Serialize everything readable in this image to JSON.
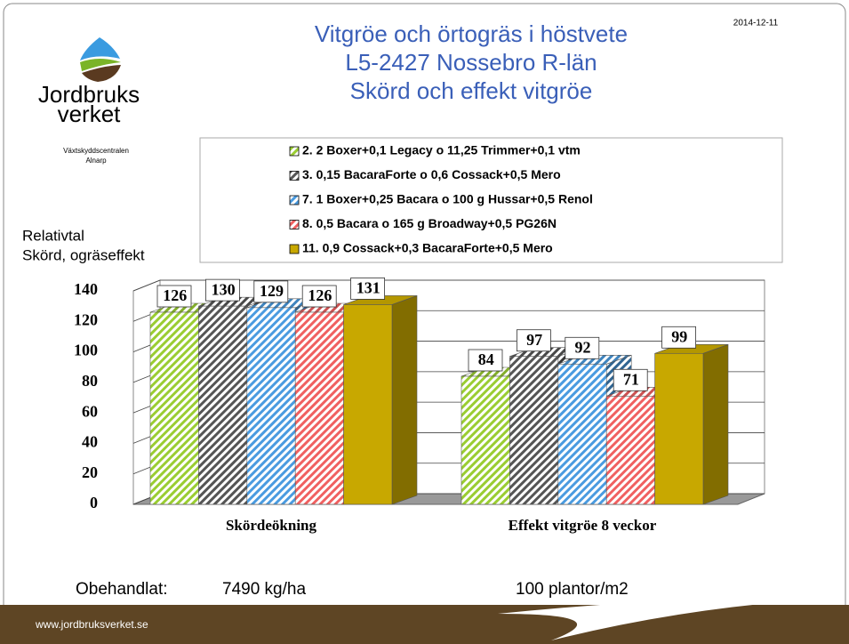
{
  "chart_data": {
    "type": "bar3d",
    "title": [
      "Vitgröe och örtogräs i höstvete",
      "L5-2427 Nossebro R-län",
      "Skörd och effekt vitgröe"
    ],
    "ylabel": [
      "Relativtal",
      "Skörd, ogräseffekt"
    ],
    "categories": [
      "Skördeökning",
      "Effekt vitgröe 8 veckor"
    ],
    "series": [
      {
        "name": "2. 2 Boxer+0,1 Legacy o 11,25 Trimmer+0,1 vtm",
        "color": "#9acd32",
        "hatch": true,
        "values": [
          126,
          84
        ]
      },
      {
        "name": "3. 0,15 BacaraForte o 0,6 Cossack+0,5 Mero",
        "color": "#555555",
        "hatch": true,
        "values": [
          130,
          97
        ]
      },
      {
        "name": "7. 1 Boxer+0,25 Bacara o 100 g Hussar+0,5 Renol",
        "color": "#4a9be0",
        "hatch": true,
        "values": [
          129,
          92
        ]
      },
      {
        "name": "8. 0,5 Bacara o 165 g Broadway+0,5 PG26N",
        "color": "#f06060",
        "hatch": true,
        "values": [
          126,
          71
        ]
      },
      {
        "name": "11. 0,9 Cossack+0,3 BacaraForte+0,5 Mero",
        "color": "#c8a800",
        "hatch": false,
        "values": [
          131,
          99
        ]
      }
    ],
    "ylim": [
      0,
      140
    ],
    "yticks": [
      0,
      20,
      40,
      60,
      80,
      100,
      120,
      140
    ],
    "grid": true,
    "legend": "top"
  },
  "slide": {
    "date": "2014-12-11",
    "logo": [
      "Jordbruks",
      "verket"
    ],
    "unit": [
      "Växtskyddscentralen",
      "Alnarp"
    ],
    "notes": [
      "Obehandlat:",
      "7490 kg/ha",
      "100 plantor/m2"
    ],
    "footer": "www.jordbruksverket.se"
  }
}
